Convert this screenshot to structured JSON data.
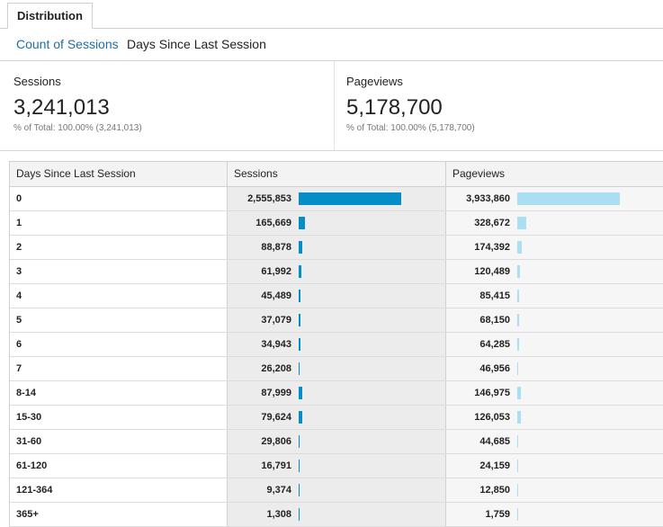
{
  "tabs": [
    {
      "label": "Distribution"
    }
  ],
  "subnav": {
    "link_label": "Count of Sessions",
    "active_label": "Days Since Last Session"
  },
  "summary": {
    "sessions": {
      "label": "Sessions",
      "value": "3,241,013",
      "pct": "% of Total: 100.00% (3,241,013)"
    },
    "pageviews": {
      "label": "Pageviews",
      "value": "5,178,700",
      "pct": "% of Total: 100.00% (5,178,700)"
    }
  },
  "table": {
    "columns": [
      "Days Since Last Session",
      "Sessions",
      "Pageviews"
    ],
    "rows": [
      {
        "key": "0",
        "sessions": "2,555,853",
        "pageviews": "3,933,860"
      },
      {
        "key": "1",
        "sessions": "165,669",
        "pageviews": "328,672"
      },
      {
        "key": "2",
        "sessions": "88,878",
        "pageviews": "174,392"
      },
      {
        "key": "3",
        "sessions": "61,992",
        "pageviews": "120,489"
      },
      {
        "key": "4",
        "sessions": "45,489",
        "pageviews": "85,415"
      },
      {
        "key": "5",
        "sessions": "37,079",
        "pageviews": "68,150"
      },
      {
        "key": "6",
        "sessions": "34,943",
        "pageviews": "64,285"
      },
      {
        "key": "7",
        "sessions": "26,208",
        "pageviews": "46,956"
      },
      {
        "key": "8-14",
        "sessions": "87,999",
        "pageviews": "146,975"
      },
      {
        "key": "15-30",
        "sessions": "79,624",
        "pageviews": "126,053"
      },
      {
        "key": "31-60",
        "sessions": "29,806",
        "pageviews": "44,685"
      },
      {
        "key": "61-120",
        "sessions": "16,791",
        "pageviews": "24,159"
      },
      {
        "key": "121-364",
        "sessions": "9,374",
        "pageviews": "12,850"
      },
      {
        "key": "365+",
        "sessions": "1,308",
        "pageviews": "1,759"
      }
    ]
  },
  "colors": {
    "sessions_bar": "#058dc7",
    "pageviews_bar": "#aadff3",
    "link": "#1f6ea6"
  }
}
